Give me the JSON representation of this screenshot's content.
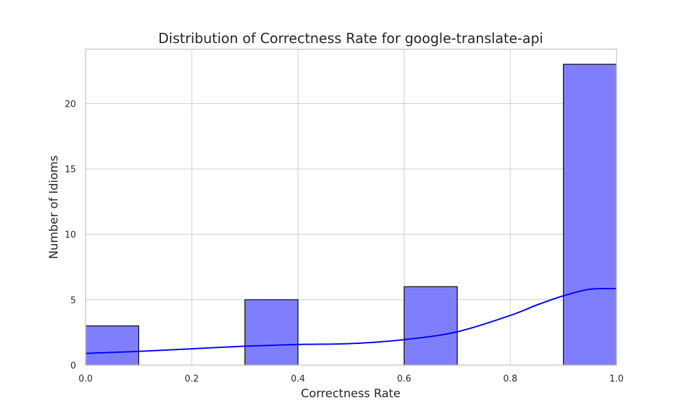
{
  "chart_data": {
    "type": "bar",
    "title": "Distribution of Correctness Rate for google-translate-api",
    "xlabel": "Correctness Rate",
    "ylabel": "Number of Idioms",
    "xlim": [
      0.0,
      1.0
    ],
    "ylim": [
      0,
      24.15
    ],
    "xticks": [
      "0.0",
      "0.2",
      "0.4",
      "0.6",
      "0.8",
      "1.0"
    ],
    "yticks": [
      "0",
      "5",
      "10",
      "15",
      "20"
    ],
    "bins": [
      {
        "x0": 0.0,
        "x1": 0.1,
        "value": 3
      },
      {
        "x0": 0.1,
        "x1": 0.2,
        "value": 0
      },
      {
        "x0": 0.2,
        "x1": 0.3,
        "value": 0
      },
      {
        "x0": 0.3,
        "x1": 0.4,
        "value": 5
      },
      {
        "x0": 0.4,
        "x1": 0.5,
        "value": 0
      },
      {
        "x0": 0.5,
        "x1": 0.6,
        "value": 0
      },
      {
        "x0": 0.6,
        "x1": 0.7,
        "value": 6
      },
      {
        "x0": 0.7,
        "x1": 0.8,
        "value": 0
      },
      {
        "x0": 0.8,
        "x1": 0.9,
        "value": 0
      },
      {
        "x0": 0.9,
        "x1": 1.0,
        "value": 23
      }
    ],
    "kde": {
      "x": [
        0.0,
        0.1,
        0.2,
        0.3,
        0.4,
        0.5,
        0.6,
        0.7,
        0.8,
        0.85,
        0.9,
        0.95,
        1.0
      ],
      "y": [
        0.9,
        1.05,
        1.25,
        1.45,
        1.58,
        1.65,
        1.95,
        2.55,
        3.8,
        4.6,
        5.3,
        5.8,
        5.85
      ]
    },
    "grid": true,
    "colors": {
      "bar_fill": "#7f7ffe",
      "bar_edge": "#000000",
      "kde_line": "#0000ff",
      "grid": "#cccccc",
      "spine": "#cccccc"
    }
  }
}
